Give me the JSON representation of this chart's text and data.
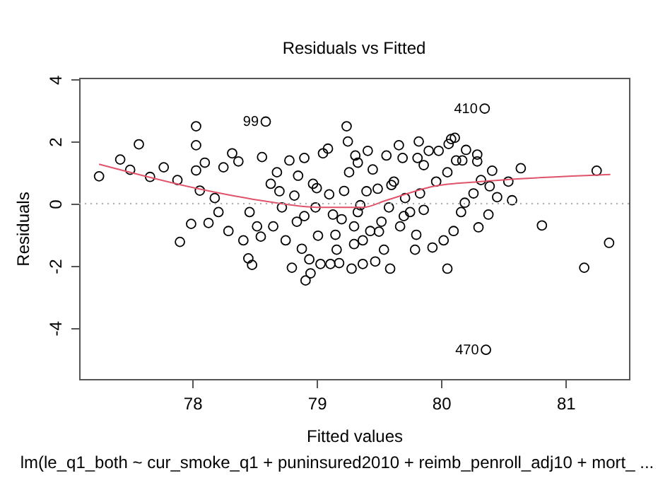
{
  "chart_data": {
    "type": "scatter",
    "title": "Residuals vs Fitted",
    "xlabel": "Fitted values",
    "ylabel": "Residuals",
    "annotations": [
      "lm(le_q1_both ~ cur_smoke_q1 + puninsured2010 + reimb_penroll_adj10 + mort_ ...",
      {
        "text": "99",
        "x": 78.59,
        "y": 2.64
      },
      {
        "text": "410",
        "x": 80.35,
        "y": 3.06
      },
      {
        "text": "470",
        "x": 80.36,
        "y": -4.7
      }
    ],
    "xlim": [
      77.09,
      81.51
    ],
    "ylim": [
      -5.64,
      4.05
    ],
    "xticks": [
      78,
      79,
      80,
      81
    ],
    "yticks": [
      -4,
      -2,
      0,
      2,
      4
    ],
    "grid": false,
    "marker": "circle",
    "ref_lines": [
      {
        "axis": "y",
        "value": 0,
        "color": "#aaaaaa",
        "line_style": "dotted"
      }
    ],
    "series": [
      {
        "type": "scatter",
        "color": "#000000",
        "x": [
          77.25,
          77.42,
          77.5,
          77.57,
          77.66,
          77.77,
          77.88,
          77.9,
          77.99,
          78.03,
          78.03,
          78.03,
          78.06,
          78.1,
          78.13,
          78.18,
          78.21,
          78.25,
          78.29,
          78.32,
          78.37,
          78.41,
          78.45,
          78.48,
          78.46,
          78.52,
          78.55,
          78.56,
          78.59,
          78.63,
          78.65,
          78.68,
          78.72,
          78.75,
          78.78,
          78.8,
          78.82,
          78.84,
          78.88,
          78.9,
          78.91,
          78.94,
          78.95,
          78.97,
          78.99,
          79.01,
          79.03,
          79.05,
          79.09,
          79.11,
          79.13,
          79.16,
          79.18,
          79.22,
          79.24,
          79.25,
          79.28,
          79.3,
          79.33,
          79.35,
          79.37,
          79.26,
          79.31,
          79.33,
          79.37,
          79.41,
          79.43,
          79.47,
          79.49,
          79.52,
          79.54,
          79.56,
          79.58,
          79.59,
          79.62,
          79.66,
          79.67,
          79.69,
          79.71,
          79.75,
          79.79,
          79.81,
          79.82,
          79.83,
          79.86,
          79.86,
          79.9,
          79.93,
          79.96,
          79.98,
          80.02,
          80.05,
          80.05,
          80.06,
          80.08,
          80.11,
          80.1,
          80.12,
          80.16,
          80.17,
          80.19,
          80.2,
          80.26,
          80.29,
          80.29,
          80.3,
          80.32,
          80.35,
          80.36,
          80.38,
          80.39,
          80.41,
          80.45,
          80.54,
          80.57,
          80.64,
          80.81,
          81.15,
          81.25,
          81.35,
          79.1,
          79.2,
          79.4,
          79.5,
          79.6,
          79.7,
          79.0,
          78.9,
          79.3,
          79.8,
          78.7,
          79.45,
          78.85,
          79.15
        ],
        "values": [
          0.88,
          1.42,
          1.09,
          1.91,
          0.86,
          1.17,
          0.76,
          -1.23,
          -0.65,
          2.49,
          1.88,
          1.07,
          0.42,
          1.32,
          -0.62,
          0.18,
          -0.27,
          1.17,
          -0.88,
          1.62,
          1.36,
          -1.18,
          -1.76,
          -1.97,
          -0.27,
          -0.73,
          -1.06,
          1.5,
          2.64,
          0.64,
          -0.73,
          1.01,
          -0.12,
          -1.18,
          1.39,
          -2.06,
          0.26,
          -0.58,
          -1.45,
          1.47,
          -2.47,
          -1.79,
          -2.24,
          0.64,
          -0.12,
          -1.03,
          -1.94,
          1.62,
          1.77,
          -1.94,
          -0.35,
          -1.48,
          -1.91,
          0.41,
          2.49,
          2.0,
          -2.09,
          -0.73,
          1.32,
          -0.05,
          -1.18,
          1.01,
          1.55,
          -0.27,
          -1.94,
          1.7,
          -0.88,
          -1.86,
          0.48,
          -0.58,
          -1.48,
          1.55,
          -0.12,
          -2.09,
          0.71,
          1.88,
          -0.73,
          1.47,
          0.18,
          -0.27,
          -1.48,
          1.47,
          2.0,
          0.33,
          1.24,
          -0.2,
          1.7,
          -1.41,
          0.71,
          1.7,
          -1.18,
          1.01,
          -2.09,
          1.92,
          2.08,
          2.12,
          -0.88,
          1.39,
          -0.27,
          1.39,
          0.03,
          1.73,
          0.33,
          1.58,
          1.36,
          -0.76,
          0.76,
          3.06,
          -4.7,
          -0.35,
          0.56,
          1.06,
          0.21,
          0.71,
          0.11,
          1.14,
          -0.7,
          -2.06,
          1.06,
          -1.26,
          0.3,
          -0.5,
          0.4,
          -0.9,
          0.6,
          -0.4,
          0.5,
          -0.4,
          -1.3,
          -1.0,
          0.4,
          1.1,
          0.9,
          -1.0
        ]
      },
      {
        "type": "line",
        "color": "#df536b",
        "marker": "none",
        "line_style": "solid",
        "x": [
          77.25,
          78.05,
          78.54,
          79.03,
          79.37,
          79.56,
          79.94,
          80.32,
          81.36
        ],
        "values": [
          1.27,
          0.48,
          0.11,
          -0.12,
          -0.12,
          0.11,
          0.56,
          0.71,
          0.94
        ]
      }
    ]
  }
}
